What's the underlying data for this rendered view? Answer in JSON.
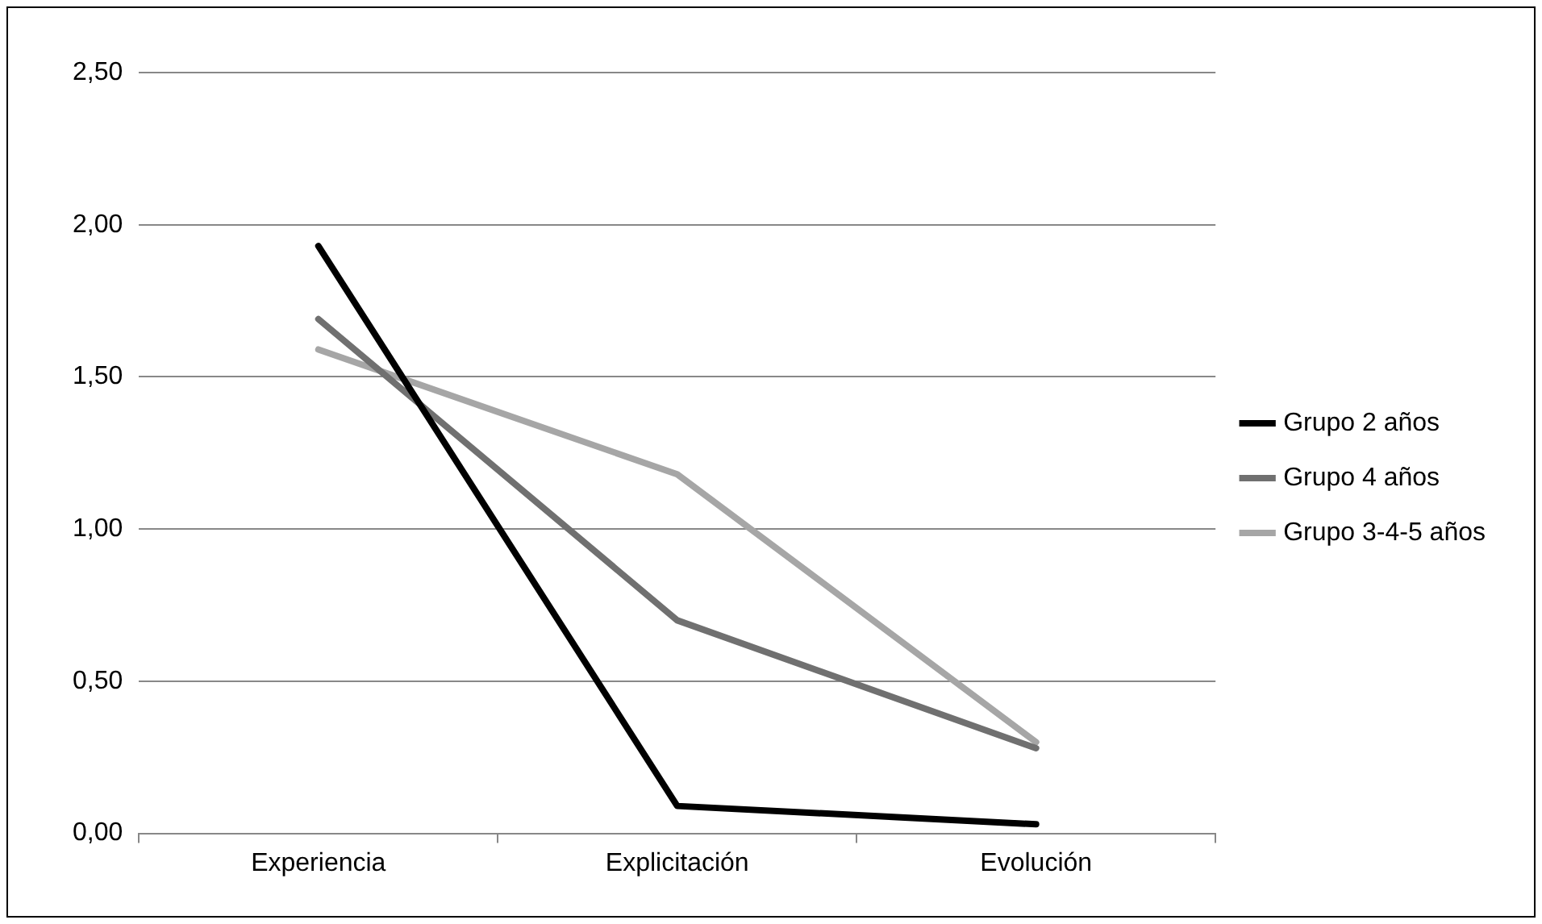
{
  "chart_data": {
    "type": "line",
    "categories": [
      "Experiencia",
      "Explicitación",
      "Evolución"
    ],
    "series": [
      {
        "name": "Grupo 2 años",
        "color": "#000000",
        "values": [
          1.93,
          0.09,
          0.03
        ]
      },
      {
        "name": "Grupo 4 años",
        "color": "#707070",
        "values": [
          1.69,
          0.7,
          0.28
        ]
      },
      {
        "name": "Grupo 3-4-5 años",
        "color": "#a6a6a6",
        "values": [
          1.59,
          1.18,
          0.3
        ]
      }
    ],
    "ylim": [
      0,
      2.5
    ],
    "yticks": [
      {
        "value": 0,
        "label": "0,00"
      },
      {
        "value": 0.5,
        "label": "0,50"
      },
      {
        "value": 1,
        "label": "1,00"
      },
      {
        "value": 1.5,
        "label": "1,50"
      },
      {
        "value": 2,
        "label": "2,00"
      },
      {
        "value": 2.5,
        "label": "2,50"
      }
    ],
    "grid": "y",
    "legend": "right",
    "marker": "none",
    "line_style": "solid"
  }
}
